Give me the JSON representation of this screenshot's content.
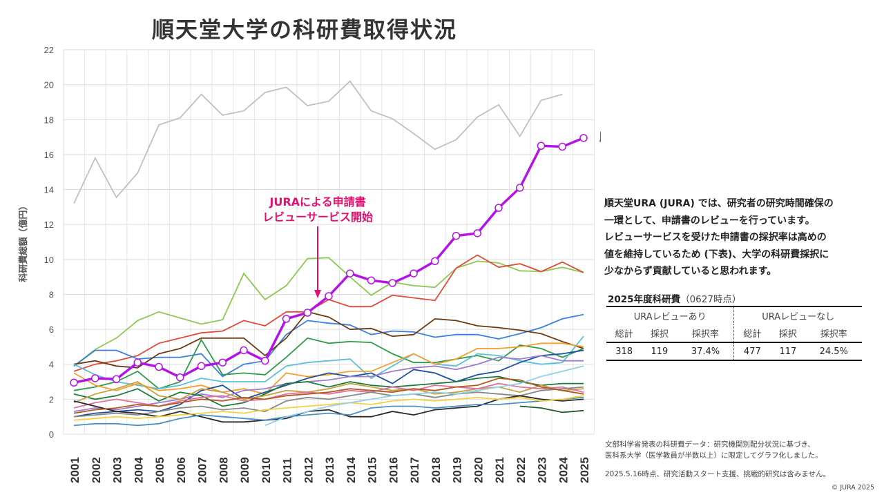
{
  "title": "順天堂大学の科研費取得状況",
  "description": [
    "順天堂URA (JURA) では、研究者の研究時間確保の",
    "一環として、申請書のレビューを行っています。",
    "レビューサービスを受けた申請書の採択率は高めの",
    "値を維持しているため (下表)、大学の科研費採択に",
    "少なからず貢献していると思われます。"
  ],
  "table": {
    "title": "2025年度科研費",
    "title_note": "（0627時点）",
    "groups": [
      "URAレビューあり",
      "URAレビューなし"
    ],
    "headers": [
      "総計",
      "採択",
      "採択率",
      "総計",
      "採択",
      "採択率"
    ],
    "values": [
      "318",
      "119",
      "37.4%",
      "477",
      "117",
      "24.5%"
    ]
  },
  "footnotes": [
    "文部科学省発表の科研費データ：研究機関別配分状況に基づき、",
    "医科系大学（医学教員が半数以上）に限定してグラフ化しました。",
    "2025.5.16時点、研究活動スタート支援、挑戦的研究は含みません。"
  ],
  "copyright": "© JURA 2025",
  "chart_data": {
    "type": "line",
    "title": "順天堂大学の科研費取得状況",
    "ylabel": "科研費総額（億円）",
    "ylim": [
      0,
      22
    ],
    "yticks": [
      0,
      2,
      4,
      6,
      8,
      10,
      12,
      14,
      16,
      18,
      20,
      22
    ],
    "grid": true,
    "x": [
      2001,
      2002,
      2003,
      2004,
      2005,
      2006,
      2007,
      2008,
      2009,
      2010,
      2011,
      2012,
      2013,
      2014,
      2015,
      2016,
      2017,
      2018,
      2019,
      2020,
      2021,
      2022,
      2023,
      2024,
      2025
    ],
    "annotation": {
      "text": [
        "JURAによる申請書",
        "レビューサービス開始"
      ],
      "x": 2013,
      "color": "#e0106e"
    },
    "highlight": {
      "name": "順天堂大学",
      "color": "#b412e6",
      "values": [
        2.95,
        3.2,
        3.15,
        4.1,
        3.85,
        3.25,
        3.9,
        4.1,
        4.8,
        4.2,
        6.6,
        6.95,
        7.9,
        9.2,
        8.8,
        8.65,
        9.2,
        9.9,
        11.35,
        11.5,
        12.95,
        14.1,
        16.5,
        16.45,
        16.95
      ]
    },
    "series": [
      {
        "color": "#c0c0c0",
        "values": [
          13.2,
          15.8,
          13.55,
          14.95,
          17.7,
          18.1,
          19.45,
          18.25,
          18.5,
          19.55,
          19.85,
          18.8,
          19.05,
          20.2,
          18.5,
          18.05,
          17.2,
          16.3,
          16.85,
          18.15,
          18.85,
          17.05,
          19.1,
          19.45,
          null
        ]
      },
      {
        "color": "#8cc850",
        "values": [
          3.9,
          4.85,
          5.5,
          6.5,
          7.0,
          6.65,
          6.3,
          6.55,
          9.2,
          7.7,
          8.5,
          10.05,
          10.1,
          9.0,
          7.95,
          8.7,
          8.5,
          8.4,
          9.5,
          9.9,
          9.8,
          9.35,
          9.3,
          9.55,
          9.25
        ]
      },
      {
        "color": "#e04a3a",
        "values": [
          3.6,
          4.0,
          4.2,
          4.5,
          5.2,
          5.5,
          5.8,
          5.9,
          6.5,
          6.2,
          7.0,
          7.0,
          7.7,
          7.3,
          7.3,
          7.95,
          7.8,
          7.65,
          9.5,
          10.25,
          9.55,
          9.75,
          9.3,
          9.85,
          9.25
        ]
      },
      {
        "color": "#3a7fe0",
        "values": [
          3.9,
          4.8,
          4.8,
          4.3,
          4.4,
          4.4,
          4.6,
          3.3,
          4.0,
          4.2,
          5.7,
          6.5,
          6.35,
          6.25,
          5.7,
          5.9,
          5.85,
          5.55,
          5.7,
          5.7,
          5.45,
          5.75,
          6.1,
          6.6,
          6.85
        ]
      },
      {
        "color": "#6b3a10",
        "values": [
          4.0,
          4.2,
          3.9,
          3.8,
          4.6,
          4.9,
          5.5,
          5.5,
          5.5,
          4.5,
          5.5,
          7.0,
          6.7,
          6.0,
          6.05,
          5.6,
          5.7,
          6.6,
          6.5,
          6.2,
          6.1,
          5.95,
          5.75,
          5.3,
          4.9
        ]
      },
      {
        "color": "#2e9a4a",
        "values": [
          2.5,
          2.7,
          3.0,
          3.6,
          2.6,
          3.0,
          5.4,
          3.4,
          3.5,
          3.4,
          4.4,
          5.5,
          5.2,
          5.3,
          5.25,
          4.6,
          4.1,
          4.1,
          4.3,
          4.5,
          4.2,
          5.1,
          4.9,
          4.4,
          4.9
        ]
      },
      {
        "color": "#5bc0d8",
        "values": [
          4.0,
          3.4,
          3.0,
          2.8,
          2.6,
          2.8,
          3.2,
          3.0,
          3.0,
          3.0,
          3.9,
          4.1,
          4.2,
          4.3,
          3.2,
          3.9,
          4.6,
          4.0,
          3.9,
          4.6,
          4.5,
          4.2,
          4.0,
          4.1,
          5.6
        ]
      },
      {
        "color": "#f0a030",
        "values": [
          3.5,
          2.8,
          2.5,
          2.9,
          2.5,
          2.6,
          2.8,
          2.4,
          2.6,
          2.3,
          3.5,
          3.3,
          3.4,
          3.6,
          3.6,
          4.1,
          4.6,
          4.0,
          4.3,
          4.9,
          4.9,
          5.0,
          5.2,
          5.2,
          5.0
        ]
      },
      {
        "color": "#1e4f9a",
        "values": [
          1.0,
          1.2,
          1.3,
          1.4,
          1.3,
          1.7,
          2.5,
          2.8,
          2.0,
          2.4,
          2.8,
          3.2,
          3.5,
          3.3,
          3.5,
          2.9,
          3.7,
          3.5,
          3.0,
          3.4,
          3.6,
          4.1,
          4.5,
          4.6,
          4.8
        ]
      },
      {
        "color": "#a07ad0",
        "values": [
          1.3,
          1.5,
          1.4,
          1.6,
          1.8,
          2.0,
          2.3,
          2.1,
          2.5,
          2.6,
          2.9,
          3.0,
          3.1,
          3.3,
          3.3,
          3.6,
          3.8,
          3.9,
          3.7,
          4.0,
          4.4,
          4.3,
          4.5,
          4.2,
          4.2
        ]
      },
      {
        "color": "#1a7a3a",
        "values": [
          2.3,
          2.0,
          2.2,
          2.6,
          1.9,
          2.4,
          2.2,
          1.6,
          1.8,
          2.3,
          2.9,
          3.0,
          2.7,
          3.0,
          2.8,
          2.7,
          2.8,
          2.9,
          3.0,
          3.2,
          3.3,
          3.0,
          2.8,
          2.9,
          2.9
        ]
      },
      {
        "color": "#c8a040",
        "values": [
          1.8,
          2.3,
          2.6,
          3.0,
          2.2,
          2.0,
          2.6,
          2.4,
          2.0,
          2.2,
          2.5,
          2.4,
          2.6,
          2.9,
          2.7,
          2.5,
          2.6,
          2.3,
          2.4,
          2.6,
          2.7,
          2.4,
          2.8,
          2.5,
          2.6
        ]
      },
      {
        "color": "#e070a0",
        "values": [
          1.5,
          1.8,
          2.0,
          1.8,
          1.6,
          1.9,
          2.1,
          2.2,
          1.9,
          2.0,
          2.3,
          2.4,
          2.3,
          2.5,
          2.4,
          2.7,
          2.5,
          2.8,
          2.7,
          2.6,
          2.9,
          2.7,
          2.6,
          2.7,
          2.4
        ]
      },
      {
        "color": "#888888",
        "values": [
          1.0,
          1.1,
          1.2,
          1.1,
          1.3,
          1.5,
          1.6,
          1.4,
          1.5,
          1.3,
          1.9,
          2.1,
          2.0,
          2.2,
          2.4,
          2.2,
          2.3,
          2.1,
          2.3,
          2.4,
          2.3,
          2.2,
          2.5,
          2.6,
          2.7
        ]
      },
      {
        "color": "#2a2a2a",
        "values": [
          1.9,
          1.6,
          1.3,
          1.2,
          1.0,
          1.3,
          1.0,
          0.7,
          0.7,
          0.8,
          0.9,
          1.3,
          1.4,
          1.0,
          1.0,
          1.3,
          1.1,
          1.4,
          1.5,
          1.6,
          2.0,
          2.2,
          2.0,
          1.9,
          2.0
        ]
      },
      {
        "color": "#4a90c0",
        "values": [
          0.5,
          0.6,
          0.6,
          0.5,
          0.6,
          0.9,
          1.1,
          1.0,
          0.9,
          0.8,
          1.0,
          1.1,
          1.2,
          1.1,
          1.5,
          1.6,
          1.6,
          1.5,
          1.6,
          1.7,
          1.7,
          1.8,
          1.9,
          2.0,
          2.1
        ]
      },
      {
        "color": "#f5d040",
        "values": [
          0.8,
          0.9,
          1.0,
          0.9,
          1.0,
          1.1,
          1.2,
          1.3,
          1.2,
          1.4,
          1.5,
          1.6,
          1.7,
          1.8,
          1.7,
          1.9,
          2.0,
          1.9,
          2.0,
          2.1,
          2.0,
          2.1,
          1.9,
          2.0,
          2.2
        ]
      },
      {
        "color": "#1f5a2a",
        "values": [
          null,
          null,
          null,
          null,
          null,
          null,
          null,
          null,
          null,
          null,
          null,
          null,
          null,
          null,
          null,
          null,
          null,
          null,
          null,
          null,
          null,
          1.6,
          1.5,
          1.25,
          1.35
        ]
      },
      {
        "color": "#b05a20",
        "values": [
          1.2,
          1.4,
          1.5,
          1.7,
          1.6,
          1.8,
          2.0,
          1.9,
          2.1,
          2.0,
          2.2,
          2.3,
          2.4,
          2.6,
          2.5,
          2.4,
          2.6,
          2.5,
          2.7,
          2.8,
          3.2,
          3.1,
          2.7,
          2.5,
          2.3
        ]
      },
      {
        "color": "#90d0e8",
        "values": [
          null,
          null,
          null,
          null,
          null,
          null,
          null,
          null,
          null,
          0.5,
          1.0,
          1.3,
          1.6,
          1.8,
          2.0,
          2.2,
          2.3,
          2.4,
          2.3,
          2.5,
          2.7,
          2.9,
          3.3,
          3.6,
          3.9
        ]
      }
    ]
  }
}
